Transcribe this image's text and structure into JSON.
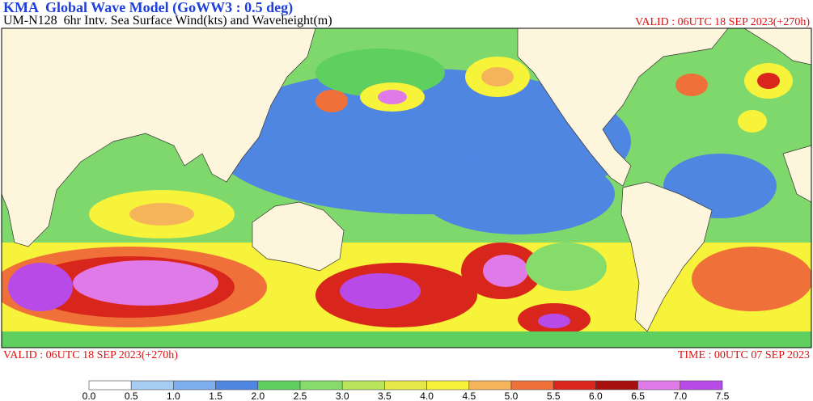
{
  "header": {
    "title": "KMA  Global Wave Model (GoWW3 : 0.5 deg)",
    "subtitle": "UM-N128  6hr Intv. Sea Surface Wind(kts) and Waveheight(m)",
    "valid": "VALID : 06UTC 18 SEP 2023(+270h)"
  },
  "footer": {
    "valid": "VALID : 06UTC 18 SEP 2023(+270h)",
    "time": "TIME : 00UTC 07 SEP 2023"
  },
  "legend": {
    "labels": [
      "0.0",
      "0.5",
      "1.0",
      "1.5",
      "2.0",
      "2.5",
      "3.0",
      "3.5",
      "4.0",
      "4.5",
      "5.0",
      "5.5",
      "6.0",
      "6.5",
      "7.0",
      "7.5"
    ],
    "colors": [
      "#ffffff",
      "#a8cdf2",
      "#7eaeee",
      "#4f86e2",
      "#5fcf5f",
      "#86dc6a",
      "#b8e45a",
      "#e6e84a",
      "#f7f23a",
      "#f5b35a",
      "#f0703a",
      "#d9261c",
      "#a8100e",
      "#e07ae8",
      "#b84ae8"
    ]
  }
}
